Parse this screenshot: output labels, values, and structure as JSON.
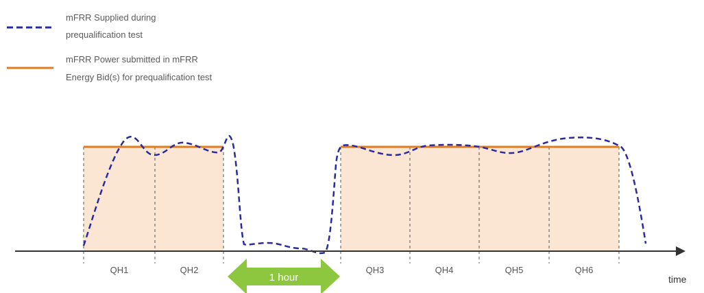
{
  "legend": {
    "supplied": {
      "line1": "mFRR Supplied during",
      "line2": "prequalification test"
    },
    "submitted": {
      "line1": "mFRR Power submitted in mFRR",
      "line2": "Energy Bid(s) for prequalification test"
    }
  },
  "quarter_hours": {
    "first_block": [
      "QH1",
      "QH2"
    ],
    "second_block": [
      "QH3",
      "QH4",
      "QH5",
      "QH6"
    ]
  },
  "gap_label": "1 hour",
  "x_axis_label": "time",
  "colors": {
    "supplied_line": "#2a2aa0",
    "submitted_line": "#e07b1e",
    "block_fill": "#fbe5d3",
    "gap_arrow": "#8dc63f",
    "axis": "#333333",
    "divider": "#555555"
  }
}
